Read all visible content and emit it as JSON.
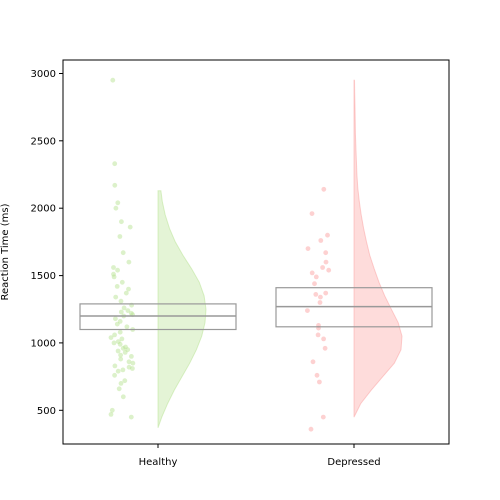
{
  "chart_data": {
    "type": "raincloud",
    "title": "",
    "xlabel": "",
    "ylabel": "Reaction Time (ms)",
    "ylim": [
      250,
      3100
    ],
    "yticks": [
      500,
      1000,
      1500,
      2000,
      2500,
      3000
    ],
    "grid": false,
    "categories": [
      "Healthy",
      "Depressed"
    ],
    "colors": {
      "Healthy": "#b2df8a",
      "Depressed": "#fb9a99",
      "box": "#999999"
    },
    "groups": [
      {
        "name": "Healthy",
        "box": {
          "q1": 1100,
          "median": 1200,
          "q3": 1290
        },
        "density": {
          "y": [
            370,
            450,
            550,
            650,
            750,
            850,
            950,
            1050,
            1150,
            1250,
            1350,
            1450,
            1550,
            1650,
            1750,
            1850,
            1950,
            2050,
            2130
          ],
          "w": [
            0.0,
            0.08,
            0.2,
            0.34,
            0.5,
            0.66,
            0.8,
            0.91,
            0.98,
            1.0,
            0.96,
            0.86,
            0.7,
            0.52,
            0.36,
            0.24,
            0.15,
            0.09,
            0.06
          ]
        },
        "points": [
          470,
          450,
          500,
          600,
          660,
          700,
          720,
          760,
          790,
          800,
          810,
          820,
          830,
          850,
          860,
          880,
          900,
          910,
          930,
          940,
          950,
          960,
          970,
          990,
          1000,
          1010,
          1030,
          1040,
          1060,
          1080,
          1100,
          1120,
          1140,
          1160,
          1180,
          1200,
          1210,
          1220,
          1230,
          1240,
          1260,
          1280,
          1310,
          1340,
          1370,
          1400,
          1420,
          1450,
          1490,
          1510,
          1540,
          1560,
          1600,
          1670,
          1790,
          1860,
          1900,
          2000,
          2040,
          2170,
          2330,
          2950
        ]
      },
      {
        "name": "Depressed",
        "box": {
          "q1": 1120,
          "median": 1270,
          "q3": 1410
        },
        "density": {
          "y": [
            450,
            550,
            650,
            750,
            850,
            950,
            1050,
            1150,
            1250,
            1350,
            1450,
            1550,
            1650,
            1750,
            1850,
            1950,
            2050,
            2150,
            2250,
            2350,
            2450,
            2550,
            2650,
            2750,
            2850,
            2950
          ],
          "w": [
            0.0,
            0.14,
            0.36,
            0.6,
            0.84,
            0.98,
            1.0,
            0.92,
            0.78,
            0.64,
            0.52,
            0.42,
            0.33,
            0.26,
            0.2,
            0.15,
            0.11,
            0.08,
            0.06,
            0.05,
            0.04,
            0.03,
            0.025,
            0.02,
            0.015,
            0.01
          ]
        },
        "points": [
          360,
          450,
          710,
          760,
          860,
          960,
          1030,
          1060,
          1110,
          1130,
          1240,
          1300,
          1340,
          1360,
          1370,
          1440,
          1490,
          1520,
          1540,
          1560,
          1600,
          1670,
          1700,
          1760,
          1800,
          1960,
          2140
        ]
      }
    ]
  }
}
